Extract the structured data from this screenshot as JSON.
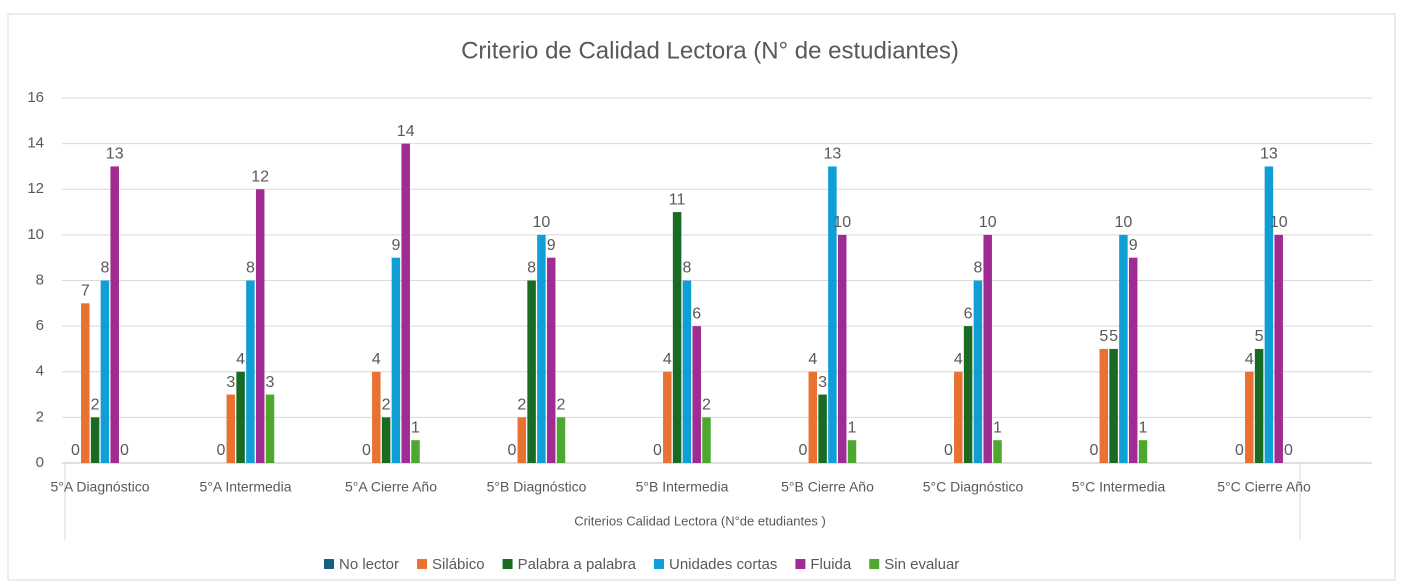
{
  "chart_data": {
    "type": "bar",
    "title": "Criterio de Calidad Lectora (N° de estudiantes)",
    "x_label": "Criterios Calidad Lectora (N°de etudiantes )",
    "categories": [
      "5°A Diagnóstico",
      "5°A Intermedia",
      "5°A Cierre Año",
      "5°B Diagnóstico",
      "5°B Intermedia",
      "5°B Cierre Año",
      "5°C Diagnóstico",
      "5°C Intermedia",
      "5°C Cierre Año"
    ],
    "series": [
      {
        "name": "No lector",
        "color": "#156082",
        "values": [
          0,
          0,
          0,
          0,
          0,
          0,
          0,
          0,
          0
        ]
      },
      {
        "name": "Silábico",
        "color": "#e97132",
        "values": [
          7,
          3,
          4,
          2,
          4,
          4,
          4,
          5,
          4
        ]
      },
      {
        "name": "Palabra a palabra",
        "color": "#196b24",
        "values": [
          2,
          4,
          2,
          8,
          11,
          3,
          6,
          5,
          5
        ]
      },
      {
        "name": "Unidades cortas",
        "color": "#0f9ed5",
        "values": [
          8,
          8,
          9,
          10,
          8,
          13,
          8,
          10,
          13
        ]
      },
      {
        "name": "Fluida",
        "color": "#a02b93",
        "values": [
          13,
          12,
          14,
          9,
          6,
          10,
          10,
          9,
          10
        ]
      },
      {
        "name": "Sin evaluar",
        "color": "#4ea72e",
        "values": [
          0,
          3,
          1,
          2,
          2,
          1,
          1,
          1,
          0
        ]
      }
    ],
    "ylim": [
      0,
      16
    ],
    "yticks": [
      0,
      2,
      4,
      6,
      8,
      10,
      12,
      14,
      16
    ],
    "grid": true,
    "legend": "bottom"
  }
}
